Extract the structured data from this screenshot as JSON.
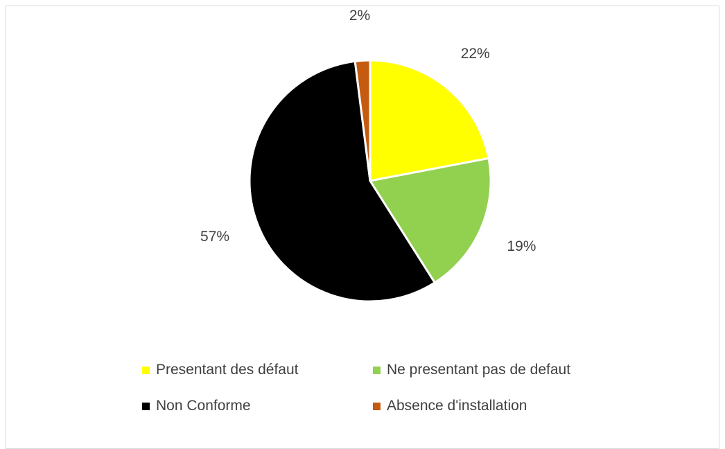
{
  "chart_data": {
    "type": "pie",
    "categories": [
      "Presentant des défaut",
      "Ne presentant pas de defaut",
      "Non Conforme",
      "Absence d'installation"
    ],
    "values": [
      22,
      19,
      57,
      2
    ],
    "value_labels": [
      "22%",
      "19%",
      "57%",
      "2%"
    ],
    "colors": [
      "#ffff00",
      "#92d050",
      "#000000",
      "#c55a11"
    ],
    "title": "",
    "legend_position": "bottom",
    "start_angle": "12 o'clock",
    "direction": "clockwise"
  }
}
